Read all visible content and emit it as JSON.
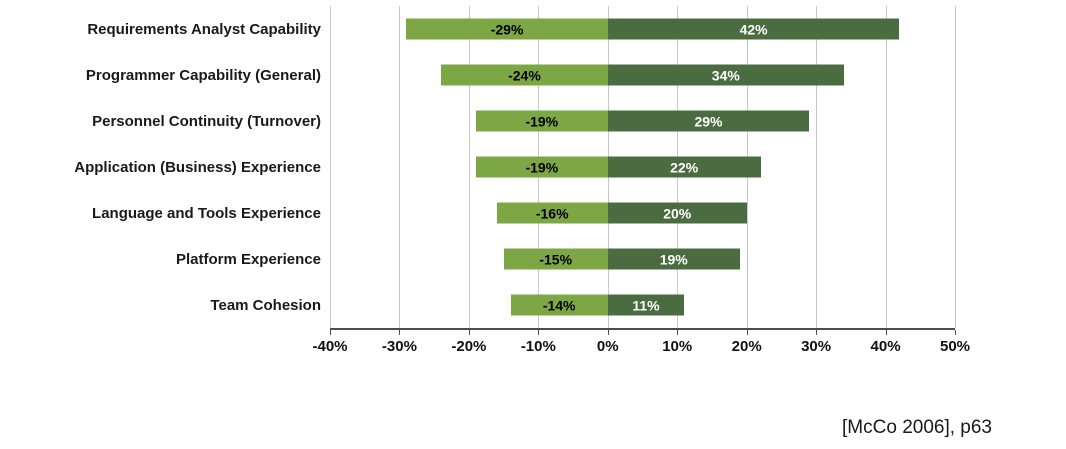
{
  "chart_data": {
    "type": "bar",
    "variant": "diverging-horizontal",
    "title": "",
    "categories": [
      "Requirements Analyst Capability",
      "Programmer Capability (General)",
      "Personnel Continuity (Turnover)",
      "Application (Business) Experience",
      "Language and Tools Experience",
      "Platform Experience",
      "Team Cohesion"
    ],
    "series": [
      {
        "name": "decrease",
        "values": [
          -29,
          -24,
          -19,
          -19,
          -16,
          -15,
          -14
        ],
        "labels": [
          "-29%",
          "-24%",
          "-19%",
          "-19%",
          "-16%",
          "-15%",
          "-14%"
        ],
        "color": "#7da644",
        "label_color": "#000000"
      },
      {
        "name": "increase",
        "values": [
          42,
          34,
          29,
          22,
          20,
          19,
          11
        ],
        "labels": [
          "42%",
          "34%",
          "29%",
          "22%",
          "20%",
          "19%",
          "11%"
        ],
        "color": "#4a6c40",
        "label_color": "#ffffff"
      }
    ],
    "xlim": [
      -40,
      50
    ],
    "x_ticks": [
      "-40%",
      "-30%",
      "-20%",
      "-10%",
      "0%",
      "10%",
      "20%",
      "30%",
      "40%",
      "50%"
    ],
    "grid": true,
    "legend": "none",
    "axis_color": "#4d4d4d",
    "gridline_color": "#c9c9c9"
  },
  "citation": "[McCo 2006], p63"
}
